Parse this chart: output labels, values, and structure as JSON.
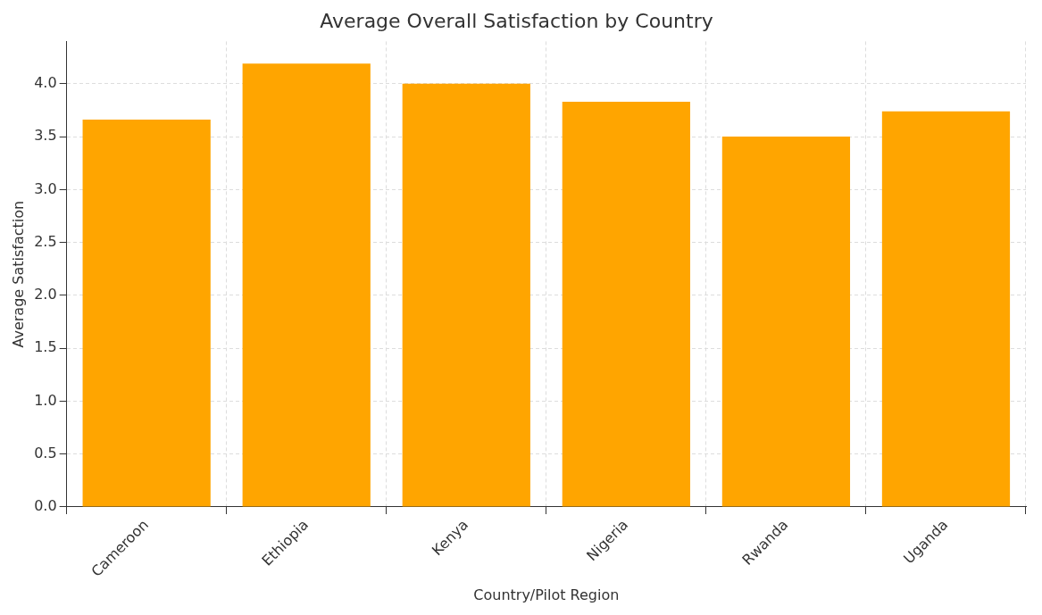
{
  "chart_data": {
    "type": "bar",
    "title": "Average Overall Satisfaction by Country",
    "xlabel": "Country/Pilot Region",
    "ylabel": "Average Satisfaction",
    "categories": [
      "Cameroon",
      "Ethiopia",
      "Kenya",
      "Nigeria",
      "Rwanda",
      "Uganda"
    ],
    "values": [
      3.66,
      4.19,
      4.0,
      3.83,
      3.5,
      3.74
    ],
    "color": "#ffa500",
    "ylim": [
      0,
      4.4
    ],
    "yticks": [
      {
        "value": 0,
        "label": "0.0"
      },
      {
        "value": 0.5,
        "label": "0.5"
      },
      {
        "value": 1,
        "label": "1.0"
      },
      {
        "value": 1.5,
        "label": "1.5"
      },
      {
        "value": 2,
        "label": "2.0"
      },
      {
        "value": 2.5,
        "label": "2.5"
      },
      {
        "value": 3,
        "label": "3.0"
      },
      {
        "value": 3.5,
        "label": "3.5"
      },
      {
        "value": 4,
        "label": "4.0"
      }
    ],
    "grid": true
  }
}
